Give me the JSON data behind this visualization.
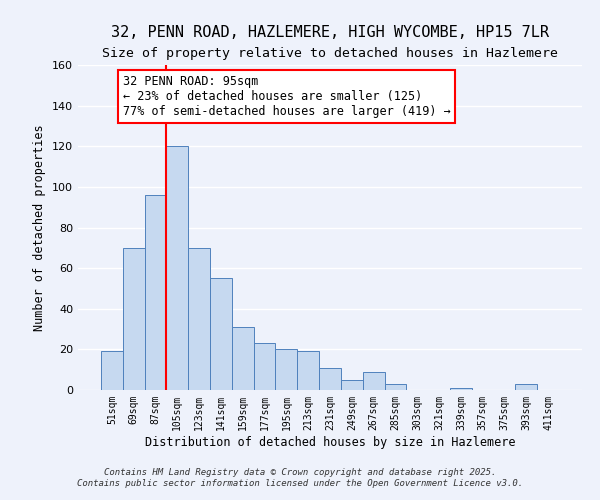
{
  "title": "32, PENN ROAD, HAZLEMERE, HIGH WYCOMBE, HP15 7LR",
  "subtitle": "Size of property relative to detached houses in Hazlemere",
  "xlabel": "Distribution of detached houses by size in Hazlemere",
  "ylabel": "Number of detached properties",
  "bar_labels": [
    "51sqm",
    "69sqm",
    "87sqm",
    "105sqm",
    "123sqm",
    "141sqm",
    "159sqm",
    "177sqm",
    "195sqm",
    "213sqm",
    "231sqm",
    "249sqm",
    "267sqm",
    "285sqm",
    "303sqm",
    "321sqm",
    "339sqm",
    "357sqm",
    "375sqm",
    "393sqm",
    "411sqm"
  ],
  "bar_values": [
    19,
    70,
    96,
    120,
    70,
    55,
    31,
    23,
    20,
    19,
    11,
    5,
    9,
    3,
    0,
    0,
    1,
    0,
    0,
    3,
    0
  ],
  "bar_color": "#c6d9f0",
  "bar_edgecolor": "#4f81bd",
  "vline_color": "red",
  "annotation_title": "32 PENN ROAD: 95sqm",
  "annotation_line2": "← 23% of detached houses are smaller (125)",
  "annotation_line3": "77% of semi-detached houses are larger (419) →",
  "ylim": [
    0,
    160
  ],
  "yticks": [
    0,
    20,
    40,
    60,
    80,
    100,
    120,
    140,
    160
  ],
  "footer1": "Contains HM Land Registry data © Crown copyright and database right 2025.",
  "footer2": "Contains public sector information licensed under the Open Government Licence v3.0.",
  "bg_color": "#eef2fb",
  "grid_color": "#ffffff",
  "title_fontsize": 11,
  "subtitle_fontsize": 9.5,
  "ann_fontsize": 8.5,
  "tick_fontsize": 7,
  "axis_label_fontsize": 8.5,
  "footer_fontsize": 6.5
}
